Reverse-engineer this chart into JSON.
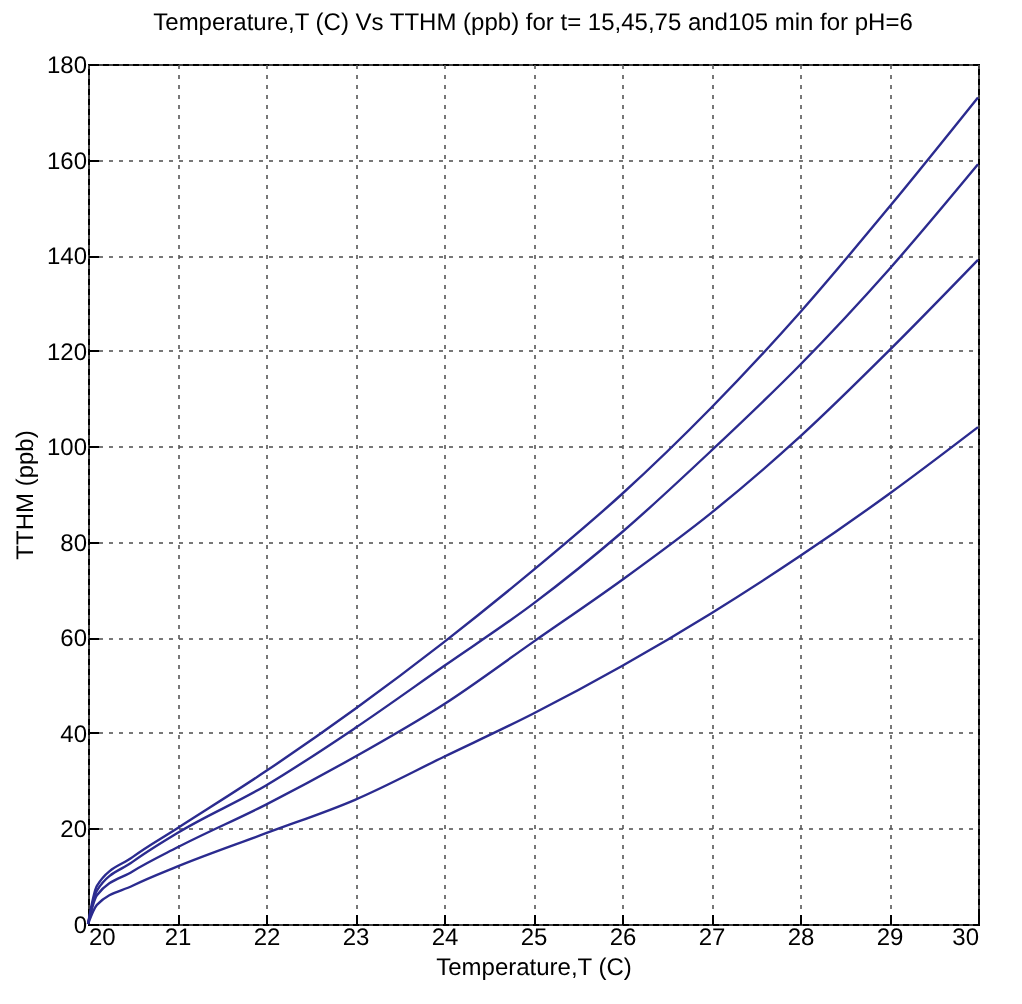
{
  "chart_data": {
    "type": "line",
    "title": "Temperature,T (C) Vs TTHM (ppb) for t= 15,45,75 and105 min for pH=6",
    "xlabel": "Temperature,T (C)",
    "ylabel": "TTHM (ppb)",
    "x": [
      20,
      20.1,
      20.5,
      21,
      22,
      23,
      24,
      25,
      26,
      27,
      28,
      29,
      30
    ],
    "series": [
      {
        "color": "#2b2b8f",
        "values": [
          0,
          8,
          14,
          20,
          32,
          45,
          59,
          74,
          90,
          108,
          128,
          150,
          173
        ]
      },
      {
        "color": "#2b2b8f",
        "values": [
          0,
          7,
          13,
          19,
          29,
          41,
          54,
          67,
          82,
          99,
          117,
          137,
          159
        ]
      },
      {
        "color": "#2b2b8f",
        "values": [
          0,
          6,
          11,
          16,
          25,
          35,
          46,
          59,
          72,
          86,
          102,
          120,
          139
        ]
      },
      {
        "color": "#2b2b8f",
        "values": [
          0,
          4,
          8,
          12,
          19,
          26,
          35,
          44,
          54,
          65,
          77,
          90,
          104
        ]
      }
    ],
    "xlim": [
      20,
      30
    ],
    "xticks": [
      20,
      21,
      22,
      23,
      24,
      25,
      26,
      27,
      28,
      29,
      30
    ],
    "ylim": [
      0,
      180
    ],
    "yticks": [
      0,
      20,
      40,
      60,
      80,
      100,
      120,
      140,
      160,
      180
    ],
    "grid": true,
    "line_style": "solid",
    "marker": "none"
  }
}
